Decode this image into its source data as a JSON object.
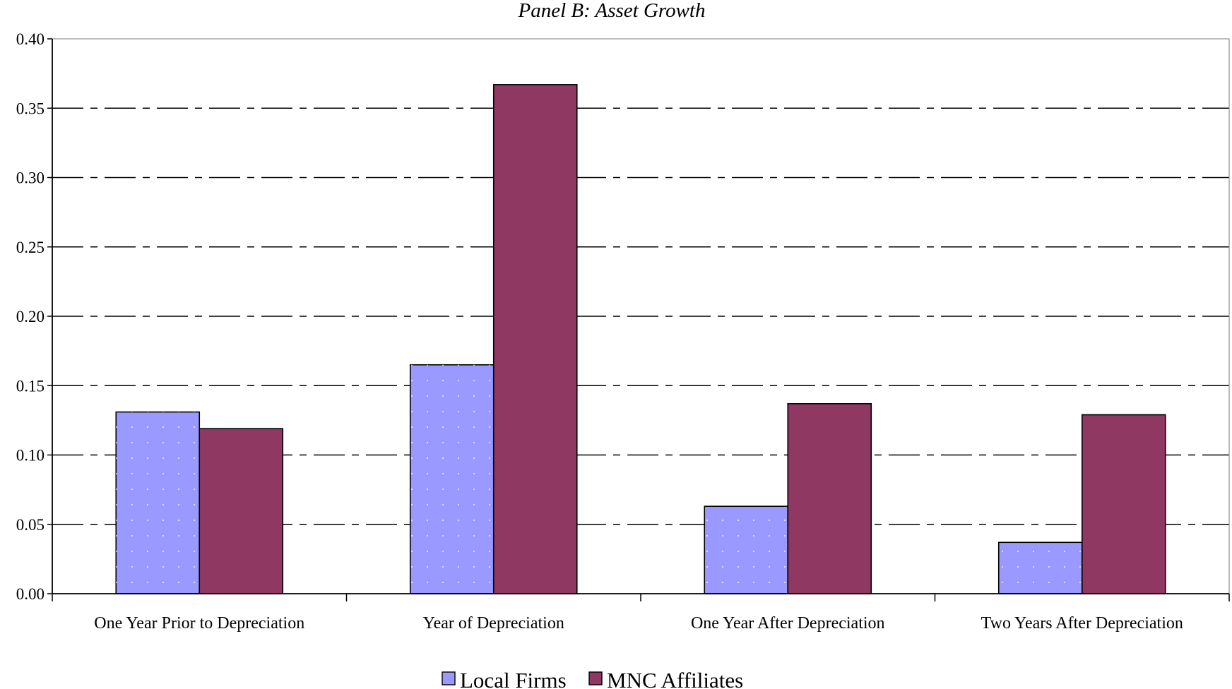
{
  "chart_data": {
    "type": "bar",
    "title": "Panel B: Asset Growth",
    "xlabel": "",
    "ylabel": "",
    "categories": [
      "One Year Prior to Depreciation",
      "Year of Depreciation",
      "One Year After Depreciation",
      "Two Years After Depreciation"
    ],
    "series": [
      {
        "name": "Local Firms",
        "values": [
          0.131,
          0.165,
          0.063,
          0.037
        ],
        "color": "#9999ff"
      },
      {
        "name": "MNC Affiliates",
        "values": [
          0.119,
          0.367,
          0.137,
          0.129
        ],
        "color": "#8e3862"
      }
    ],
    "ylim": [
      0,
      0.4
    ],
    "yticks": [
      "0.00",
      "0.05",
      "0.10",
      "0.15",
      "0.20",
      "0.25",
      "0.30",
      "0.35",
      "0.40"
    ],
    "grid": "horizontal dashed",
    "legend_position": "bottom-center"
  }
}
